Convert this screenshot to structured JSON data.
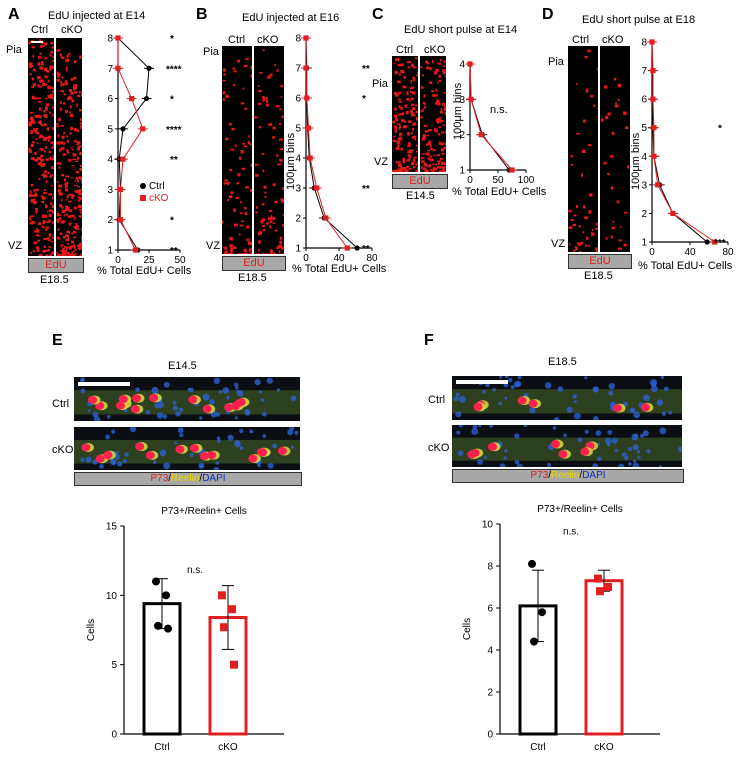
{
  "panels": {
    "A": {
      "label": "A",
      "title": "EdU injected at E14",
      "ctrl": "Ctrl",
      "cko": "cKO",
      "pia": "Pia",
      "vz": "VZ",
      "stain": "EdU",
      "stage": "E18.5",
      "ylabel": "100μm bins",
      "xlabel": "% Total EdU+ Cells",
      "legend_ctrl": "Ctrl",
      "legend_cko": "cKO"
    },
    "B": {
      "label": "B",
      "title": "EdU injected at E16",
      "ctrl": "Ctrl",
      "cko": "cKO",
      "pia": "Pia",
      "vz": "VZ",
      "stain": "EdU",
      "stage": "E18.5",
      "ylabel": "100μm bins",
      "xlabel": "% Total EdU+ Cells"
    },
    "C": {
      "label": "C",
      "title": "EdU short pulse at E14",
      "ctrl": "Ctrl",
      "cko": "cKO",
      "pia": "Pia",
      "vz": "VZ",
      "stain": "EdU",
      "stage": "E14.5",
      "ylabel": "100μm bins",
      "xlabel": "% Total EdU+ Cells",
      "ns": "n.s."
    },
    "D": {
      "label": "D",
      "title": "EdU short pulse at E18",
      "ctrl": "Ctrl",
      "cko": "cKO",
      "pia": "Pia",
      "vz": "VZ",
      "stain": "EdU",
      "stage": "E18.5",
      "ylabel": "100μm bins",
      "xlabel": "% Total EdU+ Cells"
    },
    "E": {
      "label": "E",
      "stage": "E14.5",
      "row1": "Ctrl",
      "row2": "cKO",
      "stain_p73": "P73",
      "stain_reelin": "Reelin",
      "stain_dapi": "DAPI",
      "sep": "/"
    },
    "F": {
      "label": "F",
      "stage": "E18.5",
      "row1": "Ctrl",
      "row2": "cKO",
      "stain_p73": "P73",
      "stain_reelin": "Reelin",
      "stain_dapi": "DAPI",
      "sep": "/"
    }
  },
  "chart_data": [
    {
      "panel": "A",
      "type": "line",
      "x_ticks": [
        "0",
        "25",
        "50"
      ],
      "xlim": [
        0,
        50
      ],
      "y_ticks": [
        "1",
        "2",
        "3",
        "4",
        "5",
        "6",
        "7",
        "8"
      ],
      "ylim": [
        1,
        8
      ],
      "series": [
        {
          "name": "Ctrl",
          "color": "#000000",
          "x": [
            16,
            1,
            2,
            1,
            4,
            23,
            25,
            0
          ],
          "y": [
            1,
            2,
            3,
            4,
            5,
            6,
            7,
            8
          ]
        },
        {
          "name": "cKO",
          "color": "#e02020",
          "x": [
            14,
            2,
            2,
            4,
            20,
            11,
            0,
            0
          ],
          "y": [
            1,
            2,
            3,
            4,
            5,
            6,
            7,
            8
          ]
        }
      ],
      "significance": [
        "**",
        "*",
        "",
        "**",
        "****",
        "*",
        "****",
        "*"
      ]
    },
    {
      "panel": "B",
      "type": "line",
      "x_ticks": [
        "0",
        "40",
        "80"
      ],
      "xlim": [
        0,
        80
      ],
      "y_ticks": [
        "1",
        "2",
        "3",
        "4",
        "5",
        "6",
        "7",
        "8"
      ],
      "ylim": [
        1,
        8
      ],
      "series": [
        {
          "name": "Ctrl",
          "color": "#000000",
          "x": [
            62,
            22,
            10,
            4,
            2,
            1,
            1,
            0
          ],
          "y": [
            1,
            2,
            3,
            4,
            5,
            6,
            7,
            8
          ]
        },
        {
          "name": "cKO",
          "color": "#e02020",
          "x": [
            50,
            24,
            13,
            5,
            3,
            1,
            0,
            0
          ],
          "y": [
            1,
            2,
            3,
            4,
            5,
            6,
            7,
            8
          ]
        }
      ],
      "significance": [
        "**",
        "",
        "**",
        "",
        "",
        "*",
        "**",
        ""
      ]
    },
    {
      "panel": "C",
      "type": "line",
      "x_ticks": [
        "0",
        "50",
        "100"
      ],
      "xlim": [
        0,
        100
      ],
      "y_ticks": [
        "1",
        "2",
        "3",
        "4"
      ],
      "ylim": [
        1,
        4
      ],
      "series": [
        {
          "name": "Ctrl",
          "color": "#000000",
          "x": [
            70,
            22,
            2,
            0
          ],
          "y": [
            1,
            2,
            3,
            4
          ]
        },
        {
          "name": "cKO",
          "color": "#e02020",
          "x": [
            75,
            20,
            2,
            0
          ],
          "y": [
            1,
            2,
            3,
            4
          ]
        }
      ],
      "annotation": "n.s."
    },
    {
      "panel": "D",
      "type": "line",
      "x_ticks": [
        "0",
        "40",
        "80"
      ],
      "xlim": [
        0,
        80
      ],
      "y_ticks": [
        "1",
        "2",
        "3",
        "4",
        "5",
        "6",
        "7",
        "8"
      ],
      "ylim": [
        1,
        8
      ],
      "series": [
        {
          "name": "Ctrl",
          "color": "#000000",
          "x": [
            58,
            22,
            8,
            2,
            1,
            1,
            1,
            0
          ],
          "y": [
            1,
            2,
            3,
            4,
            5,
            6,
            7,
            8
          ]
        },
        {
          "name": "cKO",
          "color": "#e02020",
          "x": [
            66,
            22,
            6,
            2,
            2,
            1,
            1,
            0
          ],
          "y": [
            1,
            2,
            3,
            4,
            5,
            6,
            7,
            8
          ]
        }
      ],
      "significance": [
        "***",
        "",
        "",
        "",
        "*",
        "",
        "",
        ""
      ]
    },
    {
      "panel": "E",
      "type": "bar",
      "title": "P73+/Reelin+ Cells",
      "ylabel": "Cells",
      "categories": [
        "Ctrl",
        "cKO"
      ],
      "values": [
        9.4,
        8.4
      ],
      "errors": [
        1.8,
        2.3
      ],
      "points": [
        [
          11.0,
          10.0,
          7.8,
          7.6
        ],
        [
          10.0,
          9.0,
          7.7,
          5.0
        ]
      ],
      "colors": [
        "#000000",
        "#e02020"
      ],
      "ylim": [
        0,
        15
      ],
      "y_ticks": [
        "0",
        "5",
        "10",
        "15"
      ],
      "annotation": "n.s."
    },
    {
      "panel": "F",
      "type": "bar",
      "title": "P73+/Reelin+ Cells",
      "ylabel": "Cells",
      "categories": [
        "Ctrl",
        "cKO"
      ],
      "values": [
        6.1,
        7.3
      ],
      "errors": [
        1.7,
        0.5
      ],
      "points": [
        [
          8.1,
          5.8,
          4.4
        ],
        [
          7.4,
          7.0,
          6.8
        ]
      ],
      "colors": [
        "#000000",
        "#e02020"
      ],
      "ylim": [
        0,
        10
      ],
      "y_ticks": [
        "0",
        "2",
        "4",
        "6",
        "8",
        "10"
      ],
      "annotation": "n.s."
    }
  ]
}
